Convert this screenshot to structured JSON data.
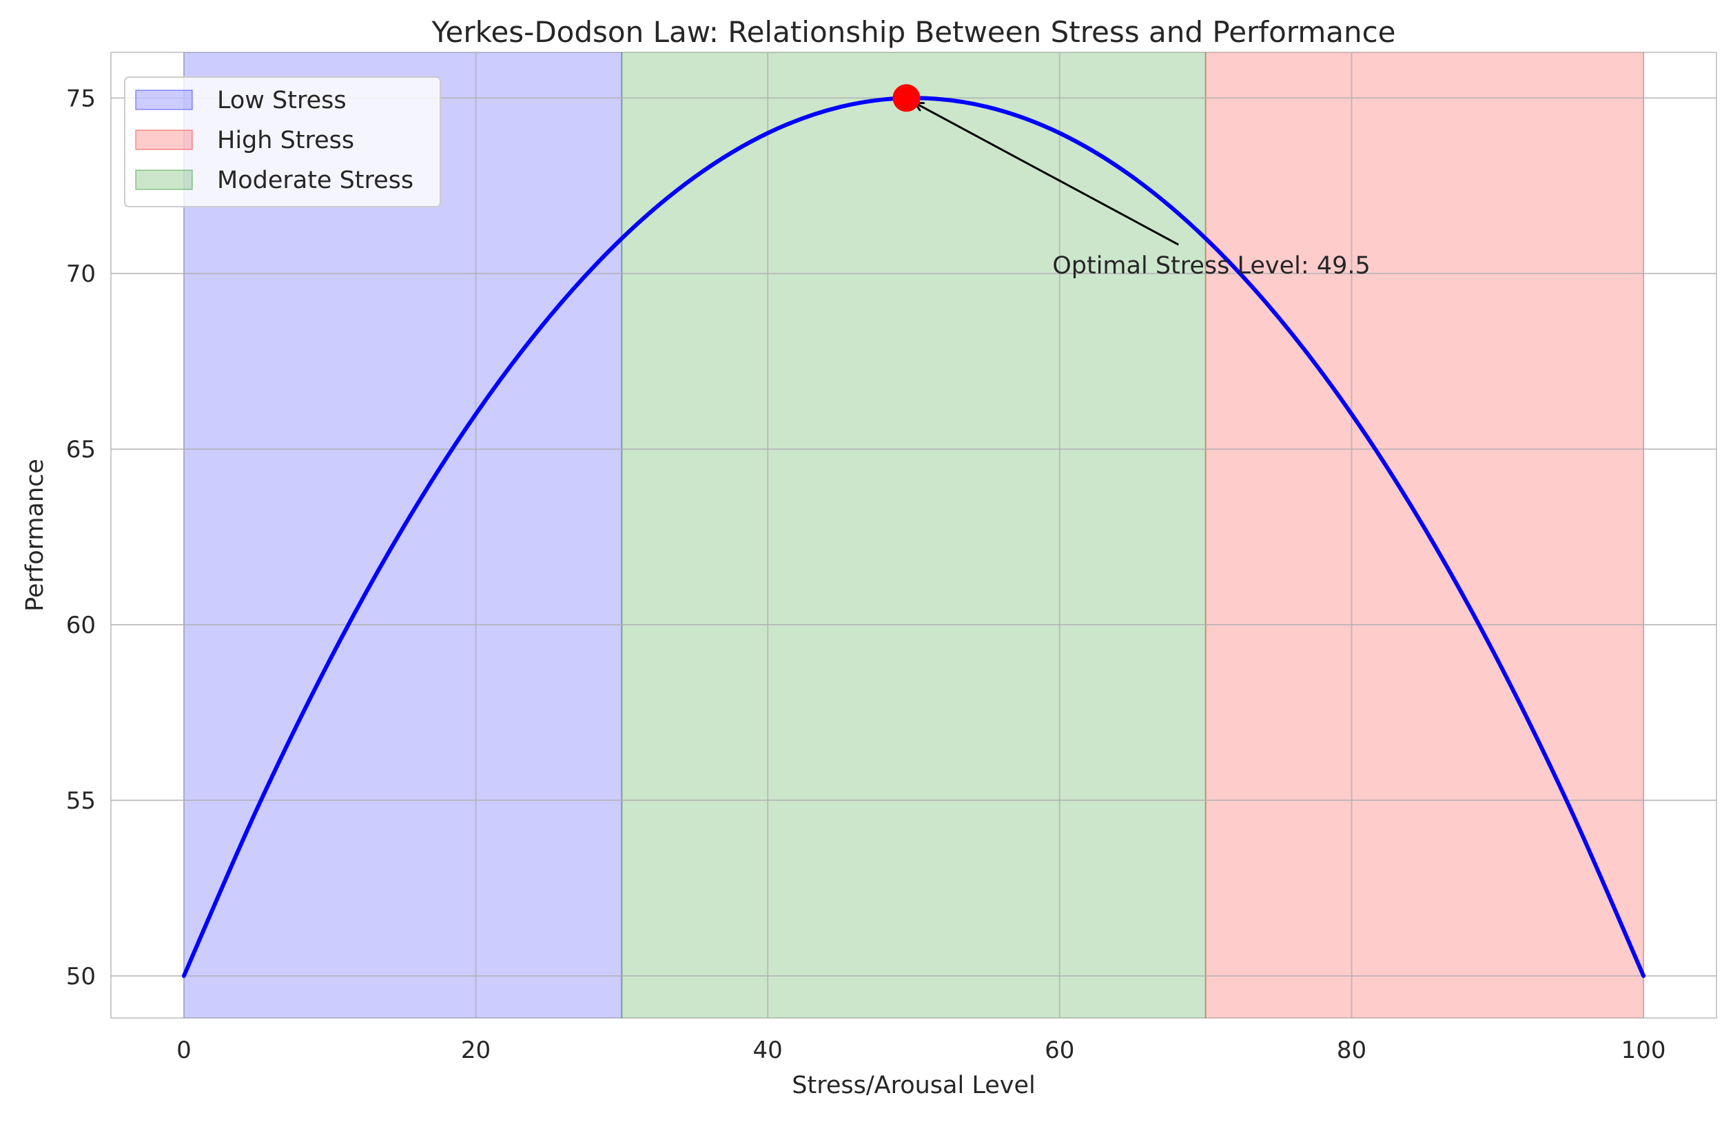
{
  "chart_data": {
    "type": "line",
    "title": "Yerkes-Dodson Law: Relationship Between Stress and Performance",
    "xlabel": "Stress/Arousal Level",
    "ylabel": "Performance",
    "xlim": [
      -5,
      105
    ],
    "ylim": [
      48.8,
      76.3
    ],
    "xticks": [
      0,
      20,
      40,
      60,
      80,
      100
    ],
    "yticks": [
      50,
      55,
      60,
      65,
      70,
      75
    ],
    "grid": true,
    "legend_position": "top-left",
    "regions": [
      {
        "name": "Low Stress",
        "x_start": 0,
        "x_end": 30,
        "color": "#0000ff"
      },
      {
        "name": "High Stress",
        "x_start": 70,
        "x_end": 100,
        "color": "#ff0000"
      },
      {
        "name": "Moderate Stress",
        "x_start": 30,
        "x_end": 70,
        "color": "#008000"
      }
    ],
    "series": [
      {
        "color": "#0000ff",
        "x": [
          0,
          5,
          10,
          15,
          20,
          25,
          30,
          35,
          40,
          45,
          50,
          55,
          60,
          65,
          70,
          75,
          80,
          85,
          90,
          95,
          100
        ],
        "y": [
          50,
          54.75,
          59,
          62.75,
          66,
          68.75,
          71,
          72.75,
          74,
          74.75,
          75,
          74.75,
          74,
          72.75,
          71,
          68.75,
          66,
          62.75,
          59,
          54.75,
          50
        ]
      }
    ],
    "optimal_point": {
      "x": 49.5,
      "y": 75,
      "color": "#ff0000"
    },
    "annotation": {
      "text": "Optimal Stress Level: 49.5",
      "text_x": 59.5,
      "text_y": 70,
      "arrow_to_x": 49.5,
      "arrow_to_y": 75
    }
  }
}
